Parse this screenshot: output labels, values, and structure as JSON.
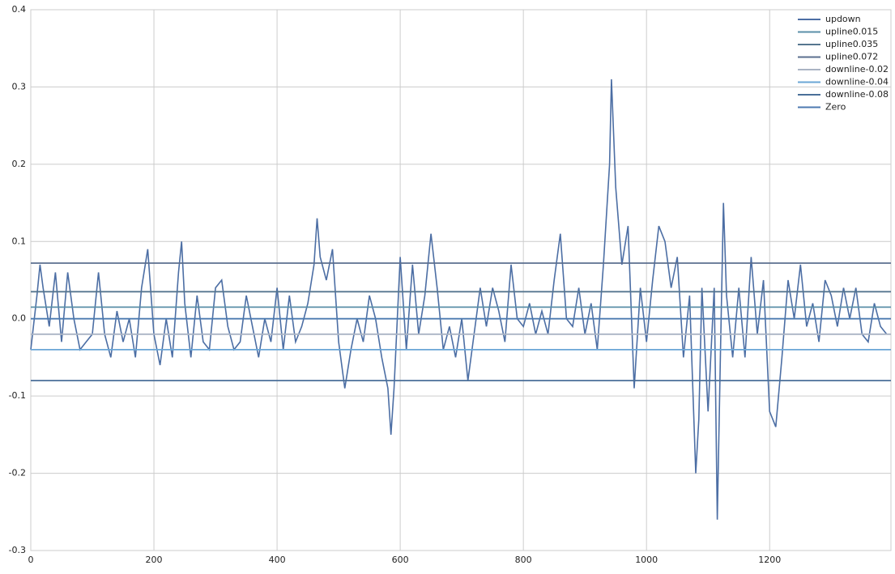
{
  "chart_data": {
    "type": "line",
    "xlim": [
      0,
      1397
    ],
    "ylim": [
      -0.3,
      0.4
    ],
    "xticks": [
      0,
      200,
      400,
      600,
      800,
      1000,
      1200
    ],
    "yticks": [
      -0.3,
      -0.2,
      -0.1,
      {
        "value": 0,
        "label": "0.0"
      },
      0.1,
      0.2,
      0.3,
      0.4
    ],
    "grid": true,
    "legend": "upper right",
    "series": [
      {
        "name": "updown",
        "color": "#4c6ea4",
        "x": [
          0,
          10,
          15,
          20,
          30,
          40,
          50,
          60,
          70,
          80,
          90,
          100,
          110,
          120,
          130,
          140,
          150,
          160,
          170,
          180,
          190,
          200,
          210,
          220,
          230,
          240,
          245,
          250,
          260,
          270,
          280,
          290,
          300,
          310,
          320,
          330,
          340,
          350,
          360,
          370,
          380,
          390,
          400,
          410,
          420,
          430,
          440,
          450,
          460,
          465,
          470,
          480,
          490,
          500,
          510,
          520,
          530,
          540,
          550,
          560,
          570,
          580,
          585,
          590,
          600,
          610,
          620,
          630,
          640,
          650,
          660,
          670,
          680,
          690,
          700,
          710,
          720,
          730,
          740,
          750,
          760,
          770,
          780,
          790,
          800,
          810,
          820,
          830,
          840,
          850,
          860,
          870,
          880,
          890,
          900,
          910,
          920,
          930,
          940,
          943,
          950,
          960,
          970,
          980,
          990,
          1000,
          1010,
          1020,
          1030,
          1040,
          1050,
          1060,
          1070,
          1080,
          1085,
          1090,
          1100,
          1110,
          1115,
          1120,
          1125,
          1130,
          1140,
          1150,
          1160,
          1170,
          1180,
          1190,
          1200,
          1210,
          1220,
          1230,
          1240,
          1250,
          1260,
          1270,
          1280,
          1290,
          1300,
          1310,
          1320,
          1330,
          1340,
          1350,
          1360,
          1370,
          1380,
          1390
        ],
        "values": [
          -0.04,
          0.03,
          0.07,
          0.04,
          -0.01,
          0.06,
          -0.03,
          0.06,
          0.0,
          -0.04,
          -0.03,
          -0.02,
          0.06,
          -0.02,
          -0.05,
          0.01,
          -0.03,
          0.0,
          -0.05,
          0.04,
          0.09,
          -0.02,
          -0.06,
          0.0,
          -0.05,
          0.06,
          0.1,
          0.02,
          -0.05,
          0.03,
          -0.03,
          -0.04,
          0.04,
          0.05,
          -0.01,
          -0.04,
          -0.03,
          0.03,
          -0.01,
          -0.05,
          0.0,
          -0.03,
          0.04,
          -0.04,
          0.03,
          -0.03,
          -0.01,
          0.02,
          0.07,
          0.13,
          0.08,
          0.05,
          0.09,
          -0.03,
          -0.09,
          -0.04,
          0.0,
          -0.03,
          0.03,
          0.0,
          -0.05,
          -0.09,
          -0.15,
          -0.09,
          0.08,
          -0.04,
          0.07,
          -0.02,
          0.03,
          0.11,
          0.04,
          -0.04,
          -0.01,
          -0.05,
          0.0,
          -0.08,
          -0.02,
          0.04,
          -0.01,
          0.04,
          0.01,
          -0.03,
          0.07,
          0.0,
          -0.01,
          0.02,
          -0.02,
          0.01,
          -0.02,
          0.05,
          0.11,
          0.0,
          -0.01,
          0.04,
          -0.02,
          0.02,
          -0.04,
          0.07,
          0.2,
          0.31,
          0.17,
          0.07,
          0.12,
          -0.09,
          0.04,
          -0.03,
          0.05,
          0.12,
          0.1,
          0.04,
          0.08,
          -0.05,
          0.03,
          -0.2,
          -0.13,
          0.04,
          -0.12,
          0.04,
          -0.26,
          -0.05,
          0.15,
          0.03,
          -0.05,
          0.04,
          -0.05,
          0.08,
          -0.02,
          0.05,
          -0.12,
          -0.14,
          -0.05,
          0.05,
          0.0,
          0.07,
          -0.01,
          0.02,
          -0.03,
          0.05,
          0.03,
          -0.01,
          0.04,
          0.0,
          0.04,
          -0.02,
          -0.03,
          0.02,
          -0.01,
          -0.02
        ]
      },
      {
        "name": "upline0.015",
        "color": "#5a8fa8",
        "x": [
          0,
          1397
        ],
        "values": [
          0.015,
          0.015
        ]
      },
      {
        "name": "upline0.035",
        "color": "#56768f",
        "x": [
          0,
          1397
        ],
        "values": [
          0.035,
          0.035
        ]
      },
      {
        "name": "upline0.072",
        "color": "#5b6f8f",
        "x": [
          0,
          1397
        ],
        "values": [
          0.072,
          0.072
        ]
      },
      {
        "name": "downline-0.02",
        "color": "#aab4c4",
        "x": [
          0,
          1397
        ],
        "values": [
          -0.02,
          -0.02
        ]
      },
      {
        "name": "downline-0.04",
        "color": "#6aa6d6",
        "x": [
          0,
          1397
        ],
        "values": [
          -0.04,
          -0.04
        ]
      },
      {
        "name": "downline-0.08",
        "color": "#4a6f99",
        "x": [
          0,
          1397
        ],
        "values": [
          -0.08,
          -0.08
        ]
      },
      {
        "name": "Zero",
        "color": "#4c7ab0",
        "x": [
          0,
          1397
        ],
        "values": [
          0,
          0
        ]
      }
    ]
  }
}
